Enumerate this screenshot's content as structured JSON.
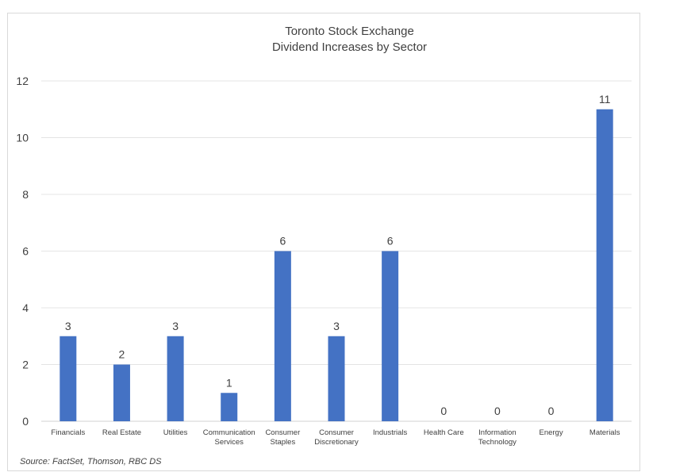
{
  "chart_data": {
    "type": "bar",
    "title_lines": [
      "Toronto Stock Exchange",
      "Dividend Increases by Sector"
    ],
    "categories": [
      [
        "Financials"
      ],
      [
        "Real Estate"
      ],
      [
        "Utilities"
      ],
      [
        "Communication",
        "Services"
      ],
      [
        "Consumer",
        "Staples"
      ],
      [
        "Consumer",
        "Discretionary"
      ],
      [
        "Industrials"
      ],
      [
        "Health Care"
      ],
      [
        "Information",
        "Technology"
      ],
      [
        "Energy"
      ],
      [
        "Materials"
      ]
    ],
    "values": [
      3,
      2,
      3,
      1,
      6,
      3,
      6,
      0,
      0,
      0,
      11
    ],
    "ylim": [
      0,
      12
    ],
    "yticks": [
      0,
      2,
      4,
      6,
      8,
      10,
      12
    ],
    "grid": true,
    "bar_color": "#4472C4",
    "data_labels": true
  },
  "source": "Source: FactSet, Thomson, RBC DS"
}
